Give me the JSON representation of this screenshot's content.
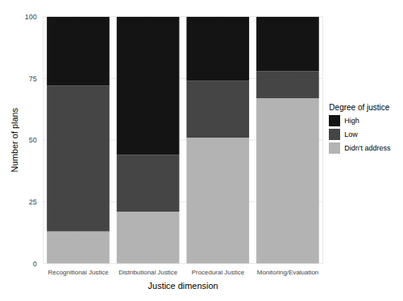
{
  "chart_data": {
    "type": "bar",
    "stacked": true,
    "grid": true,
    "legend": "right",
    "legend_title": "Degree of justice",
    "x_label": "Justice dimension",
    "y_label": "Number of plans",
    "categories": [
      "Recognitional Justice",
      "Distributional Justice",
      "Procedural Justice",
      "Monitoring/Evaluation"
    ],
    "series": [
      {
        "name": "Didn't address",
        "color": "#b3b3b3",
        "values": [
          13,
          21,
          51,
          67
        ]
      },
      {
        "name": "Low",
        "color": "#454545",
        "values": [
          59,
          23,
          23,
          11
        ]
      },
      {
        "name": "High",
        "color": "#141414",
        "values": [
          28,
          56,
          26,
          22
        ]
      }
    ],
    "ylim": [
      0,
      100
    ],
    "yticks": [
      0,
      25,
      50,
      75,
      100
    ]
  }
}
